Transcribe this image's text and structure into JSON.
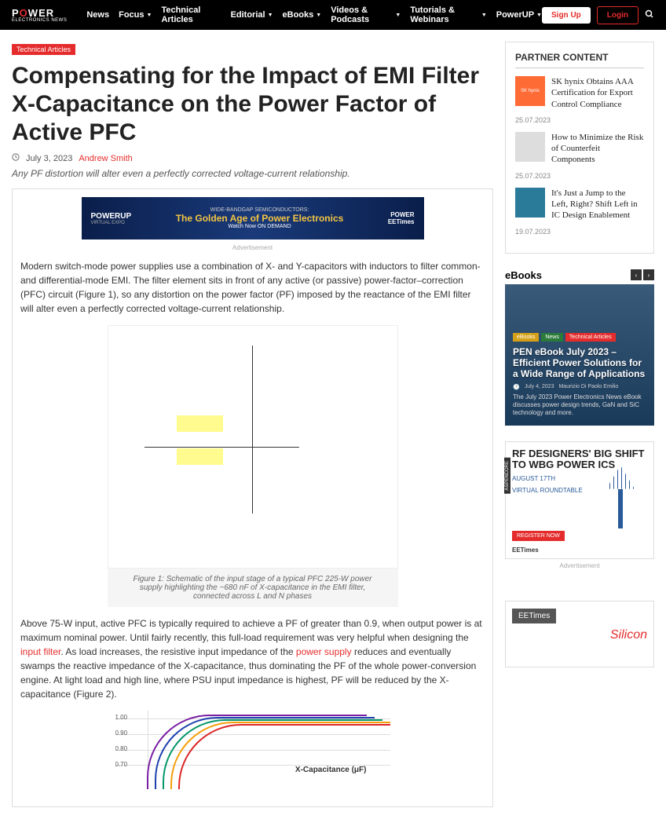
{
  "logo": {
    "main": "POWER",
    "sub": "ELECTRONICS NEWS"
  },
  "nav": [
    {
      "label": "News",
      "dd": false
    },
    {
      "label": "Focus",
      "dd": true
    },
    {
      "label": "Technical Articles",
      "dd": false
    },
    {
      "label": "Editorial",
      "dd": true
    },
    {
      "label": "eBooks",
      "dd": true
    },
    {
      "label": "Videos & Podcasts",
      "dd": true
    },
    {
      "label": "Tutorials & Webinars",
      "dd": true
    },
    {
      "label": "PowerUP",
      "dd": true
    }
  ],
  "auth": {
    "signup": "Sign Up",
    "login": "Login"
  },
  "article": {
    "tag": "Technical Articles",
    "title": "Compensating for the Impact of EMI Filter X-Capacitance on the Power Factor of Active PFC",
    "date": "July 3, 2023",
    "author": "Andrew Smith",
    "subtitle": "Any PF distortion will alter even a perfectly corrected voltage-current relationship.",
    "para1": "Modern switch-mode power supplies use a combination of X- and Y-capacitors with inductors to filter common- and differential-mode EMI. The filter element sits in front of any active (or passive) power-factor–correction (PFC) circuit (Figure 1), so any distortion on the power factor (PF) imposed by the reactance of the EMI filter will alter even a perfectly corrected voltage-current relationship.",
    "fig1_cap": "Figure 1: Schematic of the input stage of a typical PFC 225-W power supply highlighting the ~680 nF of X-capacitance in the EMI filter, connected across L and N phases",
    "para2a": "Above 75-W input, active PFC is typically required to achieve a PF of greater than 0.9, when output power is at maximum nominal power. Until fairly recently, this full-load requirement was very helpful when designing the ",
    "link1": "input filter",
    "para2b": ". As load increases, the resistive input impedance of the ",
    "link2": "power supply",
    "para2c": " reduces and eventually swamps the reactive impedance of the X-capacitance, thus dominating the PF of the whole power-conversion engine. At light load and high line, where PSU input impedance is highest, PF will be reduced by the X-capacitance (Figure 2).",
    "fig2_xlabel": "X-Capacitance (μF)",
    "fig2_yticks": [
      "1.00",
      "0.90",
      "0.80",
      "0.70"
    ],
    "chart_colors": [
      "#7a1fa2",
      "#1e40af",
      "#059669",
      "#f59e0b",
      "#dc2626"
    ]
  },
  "ad_banner": {
    "powerup": "POWERUP",
    "powerup_sub": "VIRTUAL EXPO",
    "line1": "WIDE-BANDGAP SEMICONDUCTORS:",
    "line2": "The Golden Age of Power Electronics",
    "line3": "Watch Now ON DEMAND",
    "right1": "POWER",
    "right2": "EETimes"
  },
  "ad_label": "Advertisement",
  "partner": {
    "heading": "PARTNER CONTENT",
    "items": [
      {
        "thumb": "SK hynix",
        "thumb_color": "#ff6b35",
        "title": "SK hynix Obtains AAA Certification for Export Control Compliance",
        "date": "25.07.2023"
      },
      {
        "thumb": "",
        "thumb_color": "#ddd",
        "title": "How to Minimize the Risk of Counterfeit Components",
        "date": "25.07.2023"
      },
      {
        "thumb": "",
        "thumb_color": "#2a7a9a",
        "title": "It's Just a Jump to the Left, Right? Shift Left in IC Design Enablement",
        "date": "19.07.2023"
      }
    ]
  },
  "ebooks": {
    "heading": "eBooks",
    "tags": [
      "eBooks",
      "News",
      "Technical Articles"
    ],
    "title": "PEN eBook July 2023 – Efficient Power Solutions for a Wide Range of Applications",
    "date": "July 4, 2023",
    "author": "Maurizio Di Paolo Emilio",
    "desc": "The July 2023 Power Electronics News eBook discusses power design trends, GaN and SiC technology and more."
  },
  "side_ad": {
    "asp": "ASPENCORE",
    "t1": "RF DESIGNERS' BIG SHIFT TO WBG POWER ICS",
    "t2a": "AUGUST 17TH",
    "t2b": "VIRTUAL ROUNDTABLE",
    "btn": "REGISTER NOW",
    "foot": "EETimes"
  },
  "side_ad2": {
    "ee": "EETimes",
    "sil": "Silicon"
  }
}
